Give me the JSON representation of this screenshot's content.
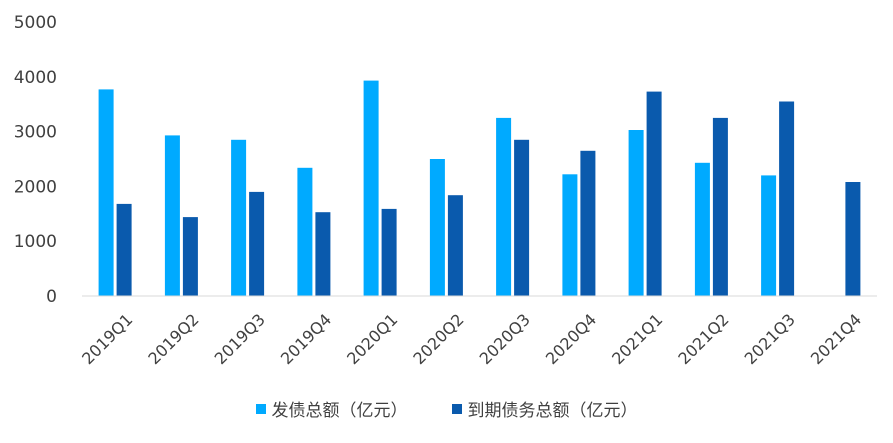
{
  "chart_data": {
    "type": "bar",
    "categories": [
      "2019Q1",
      "2019Q2",
      "2019Q3",
      "2019Q4",
      "2020Q1",
      "2020Q2",
      "2020Q3",
      "2020Q4",
      "2021Q1",
      "2021Q2",
      "2021Q3",
      "2021Q4"
    ],
    "series": [
      {
        "name": "发债总额（亿元）",
        "color": "#00aaff",
        "values": [
          3770,
          2930,
          2850,
          2340,
          3930,
          2500,
          3250,
          2220,
          3030,
          2430,
          2200,
          null
        ]
      },
      {
        "name": "到期债务总额（亿元）",
        "color": "#0a5aad",
        "values": [
          1680,
          1440,
          1900,
          1530,
          1590,
          1840,
          2850,
          2650,
          3730,
          3250,
          3550,
          2080
        ]
      }
    ],
    "yticks": [
      0,
      1000,
      2000,
      3000,
      4000,
      5000
    ],
    "ylim": [
      0,
      5000
    ],
    "title": "",
    "xlabel": "",
    "ylabel": "",
    "grid": false,
    "legend_position": "bottom"
  }
}
